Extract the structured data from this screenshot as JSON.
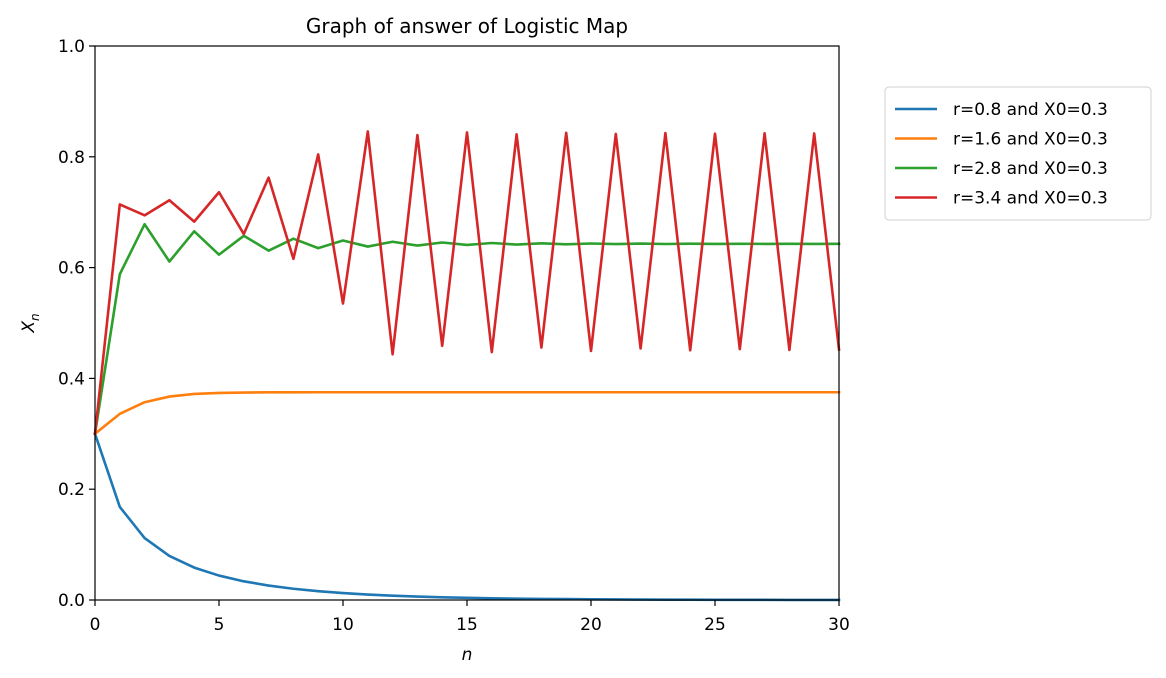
{
  "chart_data": {
    "type": "line",
    "title": "Graph of answer of Logistic Map",
    "xlabel": "n",
    "ylabel_main": "X",
    "ylabel_sub": "n",
    "xlim": [
      0,
      30
    ],
    "ylim": [
      0,
      1
    ],
    "xticks": [
      0,
      5,
      10,
      15,
      20,
      25,
      30
    ],
    "yticks": [
      0.0,
      0.2,
      0.4,
      0.6,
      0.8,
      1.0
    ],
    "xtick_labels": [
      "0",
      "5",
      "10",
      "15",
      "20",
      "25",
      "30"
    ],
    "ytick_labels": [
      "0.0",
      "0.2",
      "0.4",
      "0.6",
      "0.8",
      "1.0"
    ],
    "grid": false,
    "legend_position": "outside-right-top",
    "series": [
      {
        "name": "r=0.8 and X0=0.3",
        "color": "#1f77b4",
        "values": [
          0.3,
          0.168,
          0.1118,
          0.0795,
          0.0585,
          0.0441,
          0.0337,
          0.0261,
          0.0203,
          0.0159,
          0.0125,
          0.0099,
          0.0078,
          0.0062,
          0.0049,
          0.0039,
          0.0031,
          0.0025,
          0.002,
          0.0016,
          0.0013,
          0.001,
          0.0008,
          0.0006,
          0.0005,
          0.0004,
          0.0003,
          0.0003,
          0.0002,
          0.0002,
          0.0001
        ]
      },
      {
        "name": "r=1.6 and X0=0.3",
        "color": "#ff7f0e",
        "values": [
          0.3,
          0.336,
          0.357,
          0.3672,
          0.3719,
          0.3738,
          0.3745,
          0.3748,
          0.3749,
          0.375,
          0.375,
          0.375,
          0.375,
          0.375,
          0.375,
          0.375,
          0.375,
          0.375,
          0.375,
          0.375,
          0.375,
          0.375,
          0.375,
          0.375,
          0.375,
          0.375,
          0.375,
          0.375,
          0.375,
          0.375,
          0.375
        ]
      },
      {
        "name": "r=2.8 and X0=0.3",
        "color": "#2ca02c",
        "values": [
          0.3,
          0.588,
          0.6783,
          0.611,
          0.6655,
          0.6234,
          0.6574,
          0.6306,
          0.6522,
          0.6351,
          0.6489,
          0.638,
          0.6467,
          0.6398,
          0.6453,
          0.6409,
          0.6444,
          0.6416,
          0.6439,
          0.6421,
          0.6435,
          0.6424,
          0.6433,
          0.6426,
          0.6431,
          0.6427,
          0.643,
          0.6428,
          0.643,
          0.6428,
          0.6429
        ]
      },
      {
        "name": "r=3.4 and X0=0.3",
        "color": "#d62728",
        "values": [
          0.3,
          0.714,
          0.6943,
          0.7216,
          0.683,
          0.736,
          0.6606,
          0.7624,
          0.6159,
          0.8043,
          0.5352,
          0.8458,
          0.4435,
          0.8393,
          0.4587,
          0.8441,
          0.4474,
          0.8406,
          0.4557,
          0.8433,
          0.4496,
          0.8413,
          0.454,
          0.8428,
          0.4506,
          0.8417,
          0.4528,
          0.8424,
          0.4514,
          0.8421,
          0.4522
        ]
      }
    ]
  }
}
